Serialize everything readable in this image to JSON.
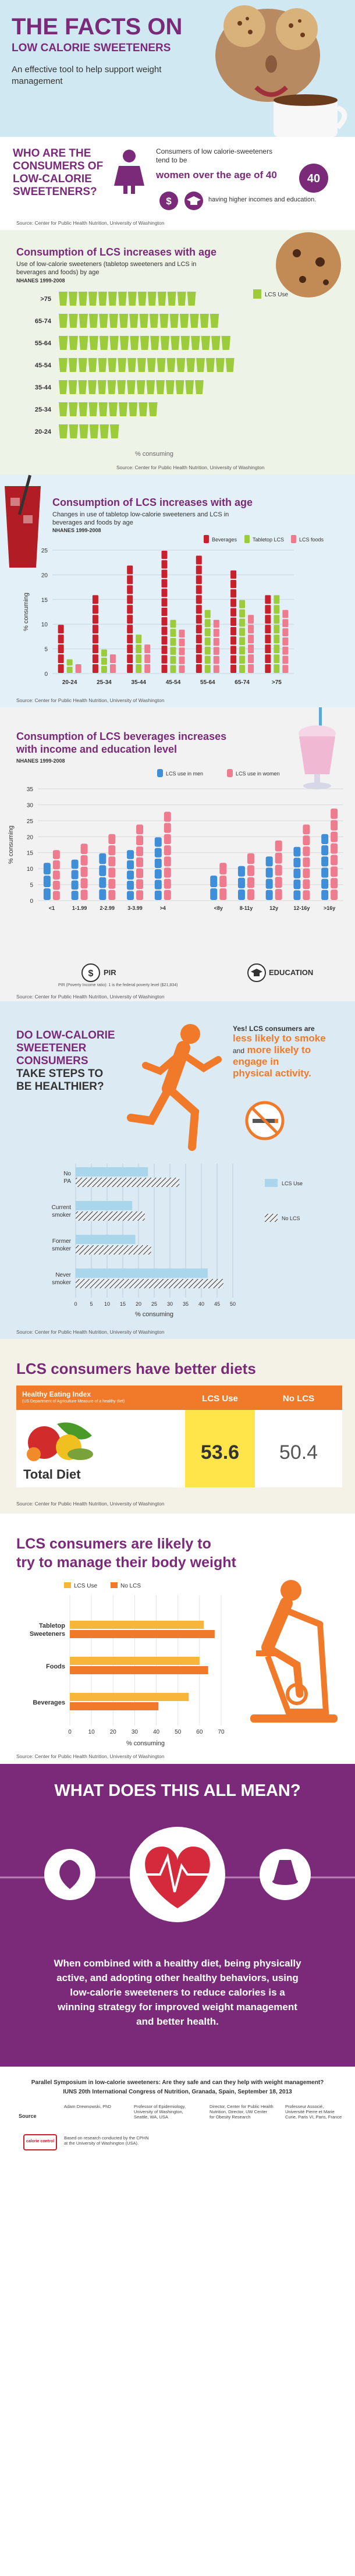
{
  "header": {
    "title_line1": "THE FACTS ON",
    "title_line2": "LOW CALORIE SWEETENERS",
    "tagline": "An effective tool to help support weight management"
  },
  "who": {
    "heading_l1": "WHO ARE THE",
    "heading_l2": "CONSUMERS OF",
    "heading_l3": "LOW-CALORIE",
    "heading_l4": "SWEETENERS?",
    "intro": "Consumers of low calorie-sweeteners tend to be",
    "highlight": "women over the age of 40",
    "detail": "having higher incomes and education.",
    "source": "Source: Center for Public Health Nutrition, University of Washington",
    "age_number": "40"
  },
  "age_chart": {
    "title": "Consumption of LCS increases with age",
    "subtitle": "Use of low-calorie sweeteners (tabletop sweeteners and LCS in beverages and foods) by age",
    "note": "NHANES 1999-2008",
    "legend": "LCS Use",
    "xlabel": "% consuming",
    "source": "Source: Center for Public Health Nutrition, University of Washington"
  },
  "type_chart": {
    "title": "Consumption of LCS increases with age",
    "subtitle": "Changes in use of tabletop low-calorie sweeteners and LCS in beverages and foods by age",
    "note": "NHANES 1999-2008",
    "legend_bev": "Beverages",
    "legend_tab": "Tabletop LCS",
    "legend_food": "LCS foods",
    "ylabel": "% consuming",
    "source": "Source: Center for Public Health Nutrition, University of Washington"
  },
  "income_chart": {
    "title_l1": "Consumption of LCS beverages increases",
    "title_l2": "with income and education level",
    "note": "NHANES 1999-2008",
    "legend_men": "LCS use in men",
    "legend_women": "LCS use in women",
    "ylabel": "% consuming",
    "pir_label": "PIR",
    "pir_note": "PIR (Poverty Income ratio): 1 is the federal poverty level ($21,834)",
    "edu_label": "EDUCATION",
    "source": "Source: Center for Public Health Nutrition, University of Washington"
  },
  "healthy": {
    "q_l1": "DO LOW-CALORIE",
    "q_l2": "SWEETENER",
    "q_l3": "CONSUMERS",
    "q_l4": "TAKE STEPS TO",
    "q_l5": "BE HEALTHIER?",
    "a_l1": "Yes! LCS consumers are",
    "a_l2": "less likely to smoke",
    "a_l3": "and",
    "a_l4": "more likely to",
    "a_l5": "engage in",
    "a_l6": "physical activity.",
    "legend_use": "LCS Use",
    "legend_no": "No LCS",
    "xlabel": "% consuming",
    "source": "Source: Center for Public Health Nutrition, University of Washington"
  },
  "diet": {
    "title": "LCS consumers have better diets",
    "index_title": "Healthy Eating Index",
    "index_sub": "(US Department of Agriculture Measure of a healthy diet)",
    "col_use": "LCS Use",
    "col_no": "No LCS",
    "row_label": "Total Diet",
    "value_use": "53.6",
    "value_no": "50.4",
    "source": "Source: Center for Public Health Nutrition, University of Washington"
  },
  "manage": {
    "title_l1": "LCS consumers are likely to",
    "title_l2": "try to manage their body weight",
    "legend_use": "LCS Use",
    "legend_no": "No LCS",
    "xlabel": "% consuming",
    "source": "Source: Center for Public Health Nutrition, University of Washington"
  },
  "meaning": {
    "title": "WHAT DOES THIS ALL MEAN?",
    "body": "When combined with a healthy diet, being physically active, and adopting other healthy behaviors, using low-calorie sweeteners to reduce calories is a winning strategy for improved weight management and better health."
  },
  "footer": {
    "symposium_l1": "Parallel Symposium in low-calorie sweeteners: Are they safe and can they help with weight management?",
    "symposium_l2": "IUNS 20th International Congress of Nutrition, Granada, Spain, September 18, 2013",
    "source_label": "Source",
    "p1": "Adam Drewnowski, PhD",
    "p2": "Professor of Epidemiology, University of Washington, Seattle, WA, USA",
    "p3": "Director, Center for Public Health Nutrition, Director, UW Center for Obesity Research",
    "p4": "Professeur Associé, Université Pierre et Marie Curie, Paris VI, Paris, France",
    "logo_text": "calorie control",
    "research_note": "Based on research conducted by the CPHN at the University of Washington (USA)."
  },
  "colors": {
    "accent_purple": "#7a2a78",
    "lcs_green": "#9ccc3c",
    "orange": "#f07a2a",
    "blue": "#3f8ed8",
    "pink": "#ef7b8f",
    "red": "#c8202c"
  },
  "chart_data": [
    {
      "type": "bar",
      "title": "Consumption of LCS increases with age",
      "categories": [
        ">75",
        "65-74",
        "55-64",
        "45-54",
        "35-44",
        "25-34",
        "20-24"
      ],
      "series": [
        {
          "name": "LCS Use",
          "values": [
            36,
            42,
            45,
            46,
            38,
            26,
            16
          ]
        }
      ],
      "xlabel": "% consuming",
      "xlim": [
        0,
        50
      ]
    },
    {
      "type": "bar",
      "title": "Consumption of LCS increases with age",
      "categories": [
        "20-24",
        "25-34",
        "35-44",
        "45-54",
        "55-64",
        "65-74",
        ">75"
      ],
      "series": [
        {
          "name": "Beverages",
          "values": [
            10,
            16,
            22,
            25,
            24,
            21,
            16
          ]
        },
        {
          "name": "Tabletop LCS",
          "values": [
            3,
            5,
            8,
            11,
            13,
            15,
            16
          ]
        },
        {
          "name": "LCS foods",
          "values": [
            2,
            4,
            6,
            9,
            11,
            12,
            13
          ]
        }
      ],
      "ylabel": "% consuming",
      "ylim": [
        0,
        25
      ],
      "yticks": [
        0,
        5,
        10,
        15,
        20,
        25
      ]
    },
    {
      "type": "bar",
      "title": "Consumption of LCS beverages increases with income and education level",
      "categories": [
        "<1",
        "1-1.99",
        "2-2.99",
        "3-3.99",
        ">4",
        "<8y",
        "8-11y",
        "12y",
        "12-16y",
        ">16y"
      ],
      "series": [
        {
          "name": "LCS use in men",
          "values": [
            12,
            13,
            15,
            16,
            20,
            8,
            11,
            14,
            17,
            21
          ]
        },
        {
          "name": "LCS use in women",
          "values": [
            16,
            18,
            21,
            24,
            28,
            12,
            15,
            19,
            24,
            29
          ]
        }
      ],
      "ylabel": "% consuming",
      "ylim": [
        0,
        35
      ],
      "yticks": [
        0,
        5,
        10,
        15,
        20,
        25,
        30,
        35
      ]
    },
    {
      "type": "bar",
      "title": "",
      "categories": [
        "No PA",
        "Current smoker",
        "Former smoker",
        "Never smoker"
      ],
      "series": [
        {
          "name": "LCS Use",
          "values": [
            23,
            18,
            19,
            42
          ]
        },
        {
          "name": "No LCS",
          "values": [
            33,
            22,
            24,
            47
          ]
        }
      ],
      "xlabel": "% consuming",
      "xlim": [
        0,
        50
      ],
      "xticks": [
        0,
        5,
        10,
        15,
        20,
        25,
        30,
        35,
        40,
        45,
        50
      ]
    },
    {
      "type": "table",
      "title": "Healthy Eating Index",
      "categories": [
        "Total Diet"
      ],
      "series": [
        {
          "name": "LCS Use",
          "values": [
            53.6
          ]
        },
        {
          "name": "No LCS",
          "values": [
            50.4
          ]
        }
      ]
    },
    {
      "type": "bar",
      "title": "LCS consumers are likely to try to manage their body weight",
      "categories": [
        "Tabletop Sweeteners",
        "Foods",
        "Beverages"
      ],
      "series": [
        {
          "name": "LCS Use",
          "values": [
            62,
            60,
            55
          ]
        },
        {
          "name": "No LCS",
          "values": [
            67,
            64,
            41
          ]
        }
      ],
      "xlabel": "% consuming",
      "xlim": [
        0,
        70
      ],
      "xticks": [
        0,
        10,
        20,
        30,
        40,
        50,
        60,
        70
      ]
    }
  ]
}
